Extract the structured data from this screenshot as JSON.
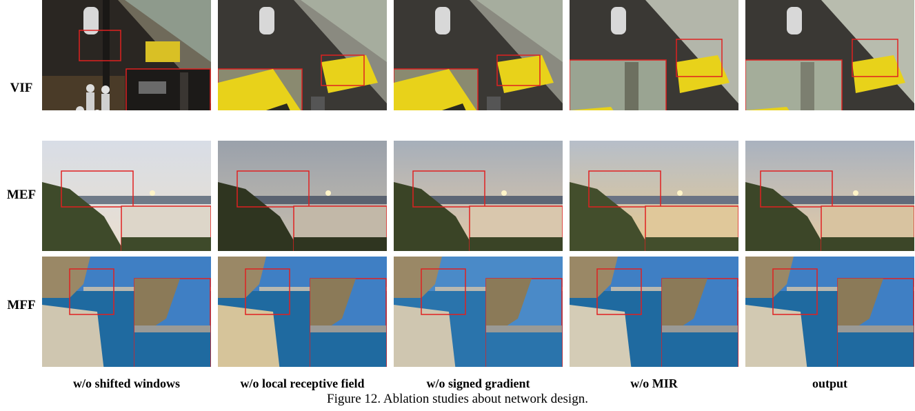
{
  "rows": [
    {
      "label": "VIF",
      "scene": "night-street"
    },
    {
      "label": "MEF",
      "scene": "sunset-landscape"
    },
    {
      "label": "MFF",
      "scene": "coastal-rock"
    }
  ],
  "columns": [
    {
      "label": "w/o shifted windows"
    },
    {
      "label": "w/o local receptive field"
    },
    {
      "label": "w/o signed gradient"
    },
    {
      "label": "w/o MIR"
    },
    {
      "label": "output"
    }
  ],
  "caption": "Figure 12. Ablation studies about network design.",
  "colors": {
    "zoom_box": "#e02020",
    "taxi_yellow": "#e8d21a",
    "sky": "#c9d3dc",
    "sea": "#1f6aa0"
  }
}
